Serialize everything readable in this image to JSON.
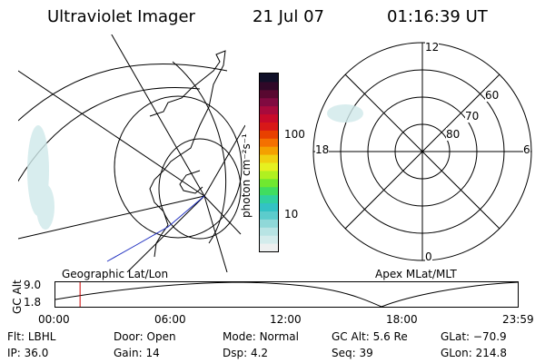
{
  "header": {
    "instrument": "Ultraviolet Imager",
    "date": "21 Jul 07",
    "time": "01:16:39 UT"
  },
  "colorbar": {
    "label": "photon cm⁻²s⁻¹",
    "ticks": [
      {
        "label": "100",
        "value": 100
      },
      {
        "label": "10",
        "value": 10
      }
    ],
    "colors": [
      "#eef0f0",
      "#d4ecec",
      "#b8e4e4",
      "#8fd8d8",
      "#5ccccc",
      "#33c2c4",
      "#30d0a0",
      "#40dd60",
      "#70e830",
      "#b0f020",
      "#e6f020",
      "#f0d010",
      "#f4a000",
      "#f47000",
      "#e84000",
      "#d81818",
      "#c80a2a",
      "#a80a3c",
      "#800a40",
      "#580830",
      "#300828",
      "#101028"
    ]
  },
  "mlt_plot": {
    "labels": {
      "top": "12",
      "bottom": "0",
      "left": "18",
      "right": "6"
    },
    "lat_labels": [
      "60",
      "70",
      "80"
    ],
    "caption": "Apex MLat/MLT"
  },
  "geo_plot": {
    "caption": "Geographic Lat/Lon"
  },
  "timeline": {
    "axis_label": "GC Alt",
    "y_ticks": [
      "9.0",
      "1.8"
    ],
    "x_ticks": [
      "00:00",
      "06:00",
      "12:00",
      "18:00",
      "23:59"
    ],
    "marker_time_hours": 1.28,
    "marker_color": "#cc0000"
  },
  "info": {
    "row1": [
      {
        "key": "Flt:",
        "value": "LBHL"
      },
      {
        "key": "Door:",
        "value": "Open"
      },
      {
        "key": "Mode:",
        "value": "Normal"
      },
      {
        "key": "GC Alt:",
        "value": "5.6 Re"
      },
      {
        "key": "GLat:",
        "value": "−70.9"
      }
    ],
    "row2": [
      {
        "key": "IP:",
        "value": "36.0"
      },
      {
        "key": "Gain:",
        "value": "14"
      },
      {
        "key": "Dsp:",
        "value": "4.2"
      },
      {
        "key": "Seq:",
        "value": "39"
      },
      {
        "key": "GLon:",
        "value": "214.8"
      }
    ]
  }
}
